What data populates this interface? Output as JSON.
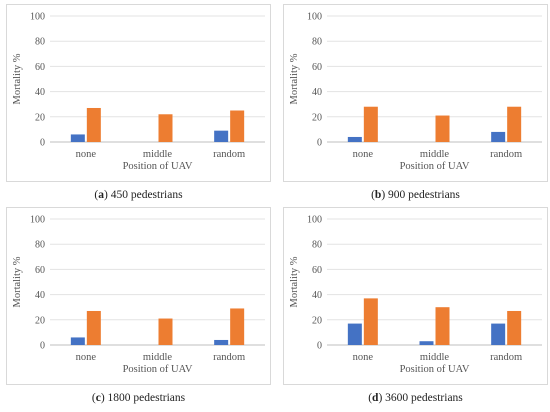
{
  "chart_data": [
    {
      "type": "bar",
      "panel_label": "a",
      "caption": "450 pedestrians",
      "categories": [
        "none",
        "middle",
        "random"
      ],
      "series": [
        {
          "values": [
            6,
            0,
            9
          ],
          "color": "#4472c4"
        },
        {
          "values": [
            27,
            22,
            25
          ],
          "color": "#ed7d31"
        }
      ],
      "xlabel": "Position of UAV",
      "ylabel": "Mortality %",
      "ylim": [
        0,
        100
      ],
      "yticks": [
        0,
        20,
        40,
        60,
        80,
        100
      ],
      "grid": true
    },
    {
      "type": "bar",
      "panel_label": "b",
      "caption": "900 pedestrians",
      "categories": [
        "none",
        "middle",
        "random"
      ],
      "series": [
        {
          "values": [
            4,
            0,
            8
          ],
          "color": "#4472c4"
        },
        {
          "values": [
            28,
            21,
            28
          ],
          "color": "#ed7d31"
        }
      ],
      "xlabel": "Position of UAV",
      "ylabel": "Mortality %",
      "ylim": [
        0,
        100
      ],
      "yticks": [
        0,
        20,
        40,
        60,
        80,
        100
      ],
      "grid": true
    },
    {
      "type": "bar",
      "panel_label": "c",
      "caption": "1800 pedestrians",
      "categories": [
        "none",
        "middle",
        "random"
      ],
      "series": [
        {
          "values": [
            6,
            0,
            4
          ],
          "color": "#4472c4"
        },
        {
          "values": [
            27,
            21,
            29
          ],
          "color": "#ed7d31"
        }
      ],
      "xlabel": "Position of UAV",
      "ylabel": "Mortality %",
      "ylim": [
        0,
        100
      ],
      "yticks": [
        0,
        20,
        40,
        60,
        80,
        100
      ],
      "grid": true
    },
    {
      "type": "bar",
      "panel_label": "d",
      "caption": "3600 pedestrians",
      "categories": [
        "none",
        "middle",
        "random"
      ],
      "series": [
        {
          "values": [
            17,
            3,
            17
          ],
          "color": "#4472c4"
        },
        {
          "values": [
            37,
            30,
            27
          ],
          "color": "#ed7d31"
        }
      ],
      "xlabel": "Position of UAV",
      "ylabel": "Mortality %",
      "ylim": [
        0,
        100
      ],
      "yticks": [
        0,
        20,
        40,
        60,
        80,
        100
      ],
      "grid": true
    }
  ]
}
